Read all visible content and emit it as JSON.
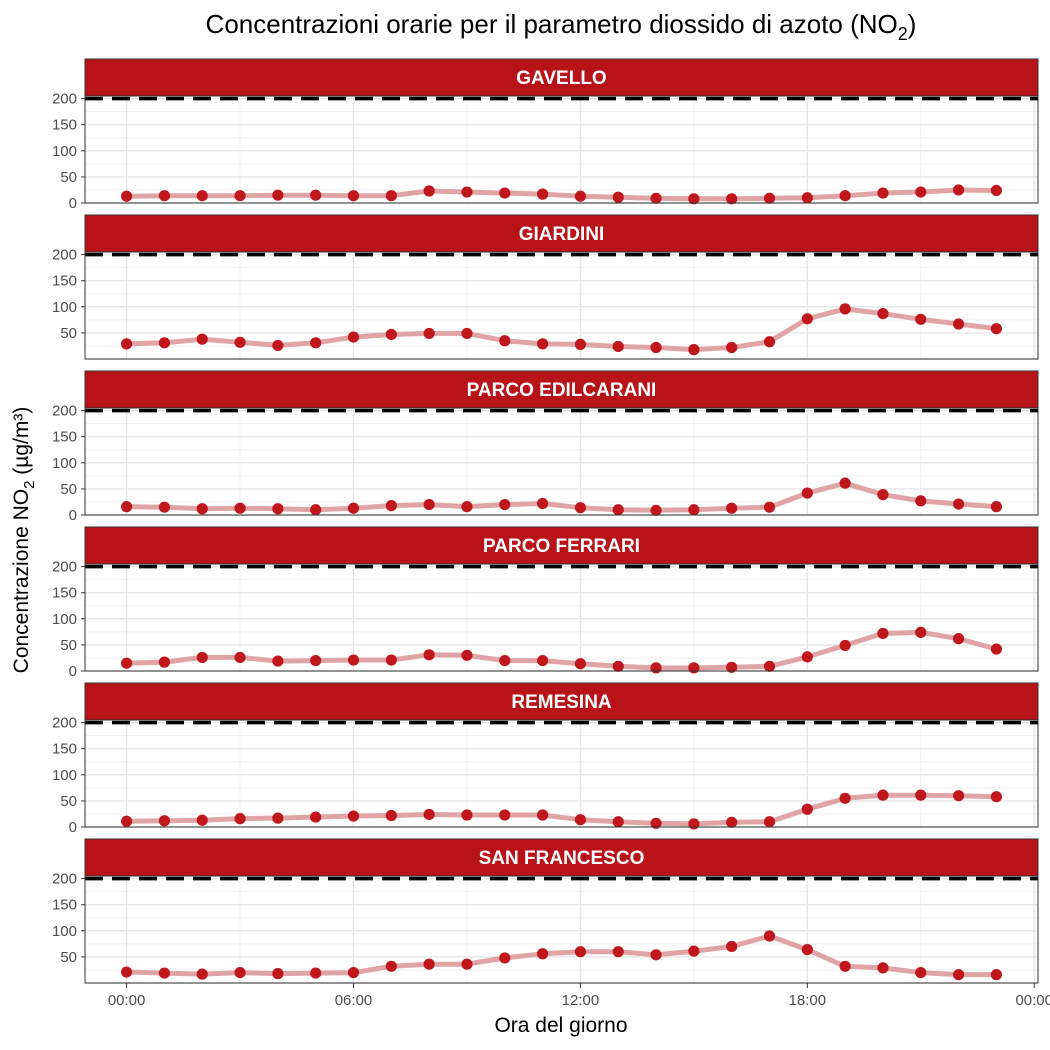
{
  "chart_data": {
    "type": "line",
    "title_main": "Concentrazioni orarie per il parametro diossido di azoto (NO",
    "title_sub": "2",
    "title_close": ")",
    "xlabel": "Ora del giorno",
    "ylabel_main": "Concentrazione NO",
    "ylabel_sub": "2",
    "ylabel_unit": " (µg/m³)",
    "xlim": [
      -1.1,
      24.1
    ],
    "ylim": [
      0,
      205
    ],
    "x_ticks": [
      0,
      6,
      12,
      18,
      24
    ],
    "x_tick_labels": [
      "00:00",
      "06:00",
      "12:00",
      "18:00",
      "00:00"
    ],
    "y_ticks": [
      0,
      50,
      100,
      150,
      200
    ],
    "limit_line": 200,
    "grid": true,
    "colors": {
      "strip": "#B71318",
      "point": "#C0171C",
      "line": "#E0A4A6",
      "limit": "#000000"
    },
    "hours": [
      0,
      1,
      2,
      3,
      4,
      5,
      6,
      7,
      8,
      9,
      10,
      11,
      12,
      13,
      14,
      15,
      16,
      17,
      18,
      19,
      20,
      21,
      22,
      23
    ],
    "panels": [
      {
        "name": "GAVELLO",
        "y_ticks": [
          0,
          50,
          100,
          150,
          200
        ],
        "values": [
          13,
          14,
          14,
          14,
          15,
          15,
          14,
          14,
          23,
          21,
          19,
          17,
          13,
          11,
          9,
          8,
          8,
          9,
          10,
          14,
          19,
          21,
          25,
          24
        ]
      },
      {
        "name": "GIARDINI",
        "y_ticks": [
          50,
          100,
          150,
          200
        ],
        "values": [
          29,
          31,
          38,
          32,
          26,
          31,
          42,
          47,
          49,
          49,
          35,
          29,
          28,
          24,
          22,
          18,
          22,
          33,
          77,
          96,
          87,
          76,
          67,
          58
        ]
      },
      {
        "name": "PARCO EDILCARANI",
        "y_ticks": [
          0,
          50,
          100,
          150,
          200
        ],
        "values": [
          16,
          15,
          12,
          13,
          12,
          10,
          13,
          18,
          20,
          16,
          20,
          22,
          14,
          10,
          9,
          10,
          13,
          15,
          42,
          61,
          39,
          27,
          21,
          16
        ]
      },
      {
        "name": "PARCO FERRARI",
        "y_ticks": [
          0,
          50,
          100,
          150,
          200
        ],
        "values": [
          15,
          17,
          26,
          26,
          19,
          20,
          21,
          21,
          31,
          30,
          20,
          20,
          14,
          9,
          6,
          6,
          7,
          9,
          27,
          49,
          72,
          74,
          62,
          42
        ]
      },
      {
        "name": "REMESINA",
        "y_ticks": [
          0,
          50,
          100,
          150,
          200
        ],
        "values": [
          11,
          12,
          13,
          16,
          17,
          19,
          21,
          22,
          24,
          23,
          23,
          23,
          14,
          10,
          7,
          6,
          9,
          10,
          34,
          55,
          61,
          61,
          60,
          58
        ]
      },
      {
        "name": "SAN FRANCESCO",
        "y_ticks": [
          50,
          100,
          150,
          200
        ],
        "values": [
          21,
          19,
          17,
          20,
          18,
          19,
          20,
          32,
          36,
          36,
          48,
          56,
          60,
          60,
          54,
          61,
          70,
          90,
          64,
          32,
          29,
          20,
          16,
          16
        ]
      }
    ]
  }
}
